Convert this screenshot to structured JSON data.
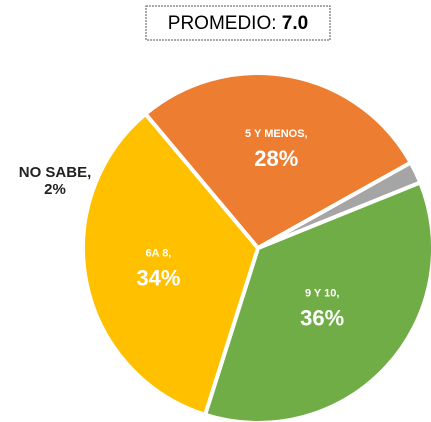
{
  "chart_data": {
    "type": "pie",
    "title": "PROMEDIO:",
    "title_value": "7.0",
    "categories": [
      "9 Y 10,",
      "6A 8,",
      "5 Y MENOS,",
      "NO SABE,"
    ],
    "values": [
      36,
      34,
      28,
      2
    ],
    "value_labels": [
      "36%",
      "34%",
      "28%",
      "2%"
    ],
    "colors": [
      "#70ad47",
      "#ffc000",
      "#ed7d31",
      "#a5a5a5"
    ]
  }
}
